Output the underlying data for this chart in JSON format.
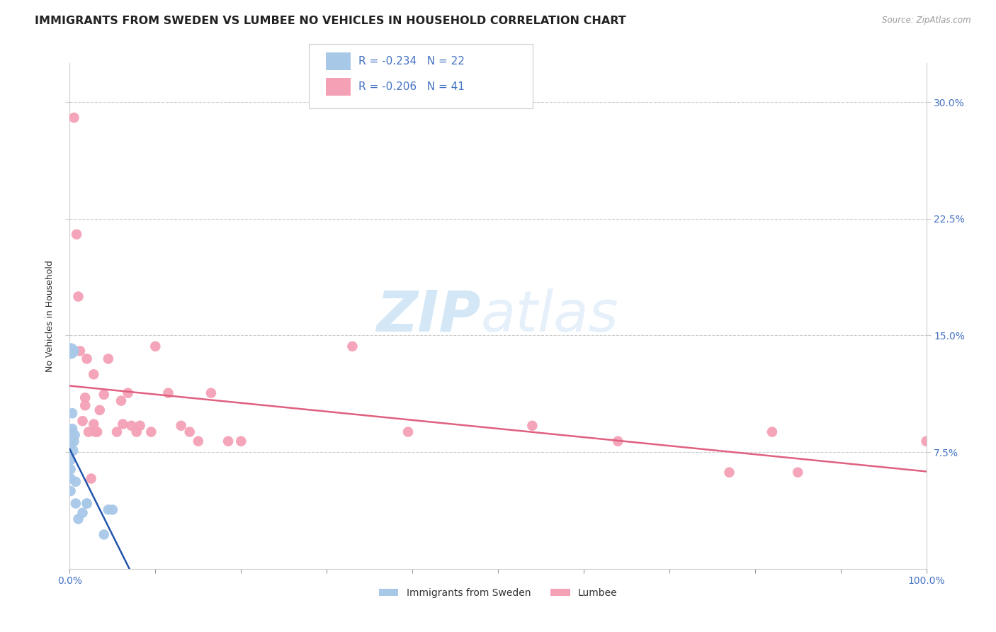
{
  "title": "IMMIGRANTS FROM SWEDEN VS LUMBEE NO VEHICLES IN HOUSEHOLD CORRELATION CHART",
  "source": "Source: ZipAtlas.com",
  "ylabel": "No Vehicles in Household",
  "ytick_labels": [
    "7.5%",
    "15.0%",
    "22.5%",
    "30.0%"
  ],
  "ytick_values": [
    0.075,
    0.15,
    0.225,
    0.3
  ],
  "xlim": [
    0,
    1.0
  ],
  "ylim": [
    0,
    0.325
  ],
  "sweden_color": "#a8c8e8",
  "lumbee_color": "#f4a0b5",
  "sweden_line_color": "#2255aa",
  "lumbee_line_color": "#e06080",
  "legend_r_sweden": "R = -0.234",
  "legend_n_sweden": "N = 22",
  "legend_r_lumbee": "R = -0.206",
  "legend_n_lumbee": "N = 41",
  "watermark_zip": "ZIP",
  "watermark_atlas": "atlas",
  "sweden_points_x": [
    0.001,
    0.001,
    0.001,
    0.001,
    0.002,
    0.002,
    0.002,
    0.003,
    0.003,
    0.004,
    0.005,
    0.005,
    0.006,
    0.007,
    0.007,
    0.01,
    0.015,
    0.02,
    0.02,
    0.04,
    0.045,
    0.05
  ],
  "sweden_points_y": [
    0.05,
    0.058,
    0.064,
    0.07,
    0.08,
    0.084,
    0.088,
    0.09,
    0.1,
    0.076,
    0.14,
    0.082,
    0.086,
    0.056,
    0.042,
    0.032,
    0.036,
    0.042,
    0.042,
    0.022,
    0.038,
    0.038
  ],
  "lumbee_points_x": [
    0.005,
    0.008,
    0.01,
    0.012,
    0.015,
    0.018,
    0.018,
    0.02,
    0.022,
    0.025,
    0.028,
    0.028,
    0.03,
    0.032,
    0.035,
    0.04,
    0.045,
    0.055,
    0.06,
    0.062,
    0.068,
    0.072,
    0.078,
    0.082,
    0.095,
    0.1,
    0.115,
    0.13,
    0.14,
    0.15,
    0.165,
    0.185,
    0.2,
    0.33,
    0.395,
    0.54,
    0.64,
    0.77,
    1.0,
    0.82,
    0.85
  ],
  "lumbee_points_y": [
    0.29,
    0.215,
    0.175,
    0.14,
    0.095,
    0.105,
    0.11,
    0.135,
    0.088,
    0.058,
    0.125,
    0.093,
    0.088,
    0.088,
    0.102,
    0.112,
    0.135,
    0.088,
    0.108,
    0.093,
    0.113,
    0.092,
    0.088,
    0.092,
    0.088,
    0.143,
    0.113,
    0.092,
    0.088,
    0.082,
    0.113,
    0.082,
    0.082,
    0.143,
    0.088,
    0.092,
    0.082,
    0.062,
    0.082,
    0.088,
    0.062
  ],
  "background_color": "#ffffff",
  "grid_color": "#cccccc",
  "title_fontsize": 11.5,
  "axis_label_fontsize": 9,
  "tick_fontsize": 10,
  "marker_size": 110,
  "large_marker_size": 260
}
